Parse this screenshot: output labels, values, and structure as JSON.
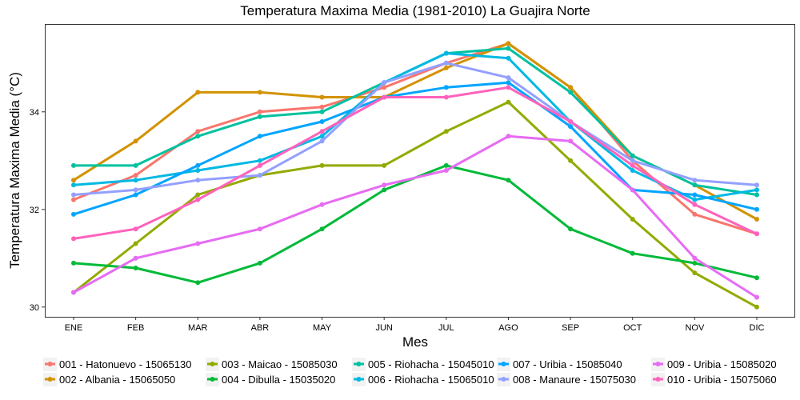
{
  "chart_data": {
    "type": "line",
    "title": "Temperatura Maxima Media (1981-2010)  La Guajira Norte",
    "xlabel": "Mes",
    "ylabel": "Temperatura Maxima Media  (°C)",
    "categories": [
      "ENE",
      "FEB",
      "MAR",
      "ABR",
      "MAY",
      "JUN",
      "JUL",
      "AGO",
      "SEP",
      "OCT",
      "NOV",
      "DIC"
    ],
    "ylim": [
      29.8,
      35.8
    ],
    "yticks": [
      30,
      32,
      34
    ],
    "grid": false,
    "legend_position": "bottom",
    "series": [
      {
        "name": "001 - Hatonuevo - 15065130",
        "color": "#F8766D",
        "values": [
          32.2,
          32.7,
          33.6,
          34.0,
          34.1,
          34.5,
          35.0,
          35.4,
          34.5,
          33.0,
          31.9,
          31.5
        ]
      },
      {
        "name": "002 - Albania - 15065050",
        "color": "#D39200",
        "values": [
          32.6,
          33.4,
          34.4,
          34.4,
          34.3,
          34.3,
          34.9,
          35.4,
          34.5,
          33.1,
          32.5,
          31.8
        ]
      },
      {
        "name": "003 - Maicao - 15085030",
        "color": "#93AA00",
        "values": [
          30.3,
          31.3,
          32.3,
          32.7,
          32.9,
          32.9,
          33.6,
          34.2,
          33.0,
          31.8,
          30.7,
          30.0
        ]
      },
      {
        "name": "004 - Dibulla - 15035020",
        "color": "#00BA38",
        "values": [
          30.9,
          30.8,
          30.5,
          30.9,
          31.6,
          32.4,
          32.9,
          32.6,
          31.6,
          31.1,
          30.9,
          30.6
        ]
      },
      {
        "name": "005 - Riohacha - 15045010",
        "color": "#00C19F",
        "values": [
          32.9,
          32.9,
          33.5,
          33.9,
          34.0,
          34.6,
          35.2,
          35.3,
          34.4,
          33.1,
          32.5,
          32.3
        ]
      },
      {
        "name": "006 - Riohacha - 15065010",
        "color": "#00B9E3",
        "values": [
          32.5,
          32.6,
          32.8,
          33.0,
          33.5,
          34.6,
          35.2,
          35.1,
          33.8,
          32.8,
          32.2,
          32.4
        ]
      },
      {
        "name": "007 - Uribia - 15085040",
        "color": "#00A5FF",
        "values": [
          31.9,
          32.3,
          32.9,
          33.5,
          33.8,
          34.3,
          34.5,
          34.6,
          33.7,
          32.4,
          32.3,
          32.0
        ]
      },
      {
        "name": "008 - Manaure - 15075030",
        "color": "#93A0FF",
        "values": [
          32.3,
          32.4,
          32.6,
          32.7,
          33.4,
          34.6,
          35.0,
          34.7,
          33.8,
          33.0,
          32.6,
          32.5
        ]
      },
      {
        "name": "009 - Uribia - 15085020",
        "color": "#E76BF3",
        "values": [
          30.3,
          31.0,
          31.3,
          31.6,
          32.1,
          32.5,
          32.8,
          33.5,
          33.4,
          32.4,
          31.0,
          30.2
        ]
      },
      {
        "name": "010 - Uribia - 15075060",
        "color": "#FF62BC",
        "values": [
          31.4,
          31.6,
          32.2,
          32.9,
          33.6,
          34.3,
          34.3,
          34.5,
          33.8,
          32.9,
          32.1,
          31.5
        ]
      }
    ]
  }
}
